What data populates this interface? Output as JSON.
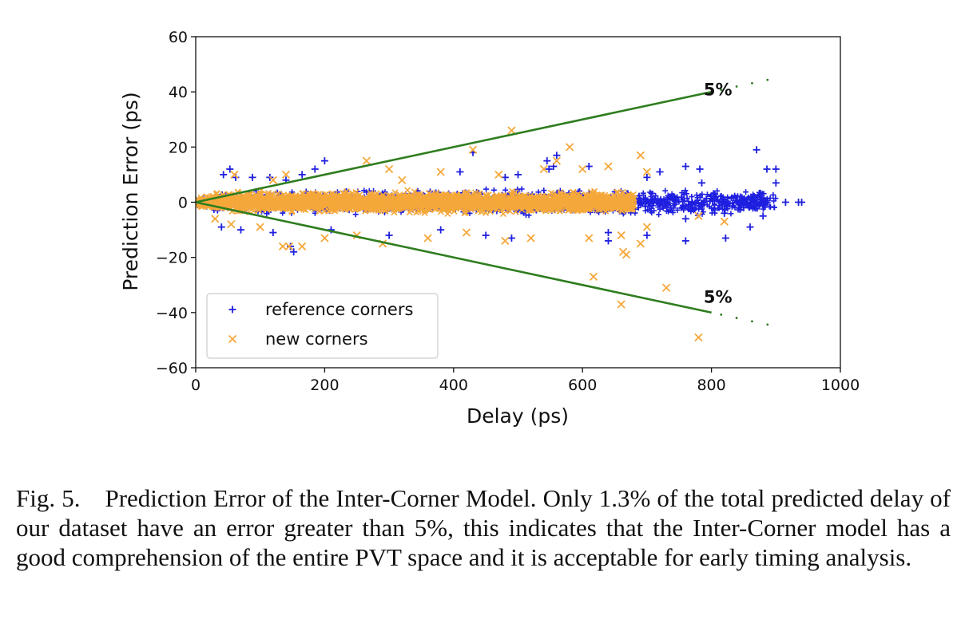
{
  "chart_data": {
    "type": "scatter",
    "xlabel": "Delay (ps)",
    "ylabel": "Prediction Error (ps)",
    "xlim": [
      0,
      1000
    ],
    "ylim": [
      -60,
      60
    ],
    "xticks": [
      0,
      200,
      400,
      600,
      800,
      1000
    ],
    "yticks": [
      60,
      40,
      20,
      0,
      -20,
      -40,
      -60
    ],
    "grid": false,
    "legend_position": "lower-left",
    "series": [
      {
        "name": "reference corners",
        "marker": "+",
        "color": "#1f1fe0",
        "points": [
          [
            870,
            19
          ],
          [
            900,
            12
          ],
          [
            886,
            12
          ],
          [
            900,
            7
          ],
          [
            760,
            13
          ],
          [
            782,
            12
          ],
          [
            720,
            11
          ],
          [
            700,
            9
          ],
          [
            560,
            17
          ],
          [
            548,
            12
          ],
          [
            545,
            15
          ],
          [
            430,
            18
          ],
          [
            555,
            13
          ],
          [
            500,
            10
          ],
          [
            480,
            9
          ],
          [
            200,
            15
          ],
          [
            185,
            12
          ],
          [
            53,
            12
          ],
          [
            43,
            10
          ],
          [
            62,
            9
          ],
          [
            88,
            9
          ],
          [
            115,
            9
          ],
          [
            140,
            8
          ],
          [
            165,
            10
          ],
          [
            640,
            -11
          ],
          [
            700,
            -12
          ],
          [
            760,
            -14
          ],
          [
            860,
            -9
          ],
          [
            822,
            -13
          ],
          [
            640,
            -14
          ],
          [
            490,
            -13
          ],
          [
            450,
            -12
          ],
          [
            147,
            -16
          ],
          [
            152,
            -18
          ],
          [
            120,
            -11
          ],
          [
            70,
            -10
          ],
          [
            40,
            -9
          ],
          [
            915,
            0
          ],
          [
            940,
            0
          ],
          [
            935,
            0
          ],
          [
            875,
            1
          ],
          [
            850,
            -2
          ],
          [
            820,
            -4
          ],
          [
            805,
            3
          ],
          [
            880,
            -5
          ],
          [
            760,
            -6
          ],
          [
            785,
            7
          ],
          [
            300,
            -12
          ],
          [
            380,
            -10
          ],
          [
            610,
            13
          ],
          [
            410,
            11
          ],
          [
            210,
            -10
          ]
        ]
      },
      {
        "name": "new corners",
        "marker": "x",
        "color": "#f5a83a",
        "points": [
          [
            490,
            26
          ],
          [
            580,
            20
          ],
          [
            690,
            17
          ],
          [
            430,
            19
          ],
          [
            265,
            15
          ],
          [
            300,
            12
          ],
          [
            135,
            -16
          ],
          [
            145,
            -16
          ],
          [
            165,
            -16
          ],
          [
            617,
            -27
          ],
          [
            663,
            -18
          ],
          [
            668,
            -19
          ],
          [
            690,
            -15
          ],
          [
            660,
            -37
          ],
          [
            730,
            -31
          ],
          [
            780,
            -49
          ],
          [
            700,
            -9
          ],
          [
            660,
            -12
          ],
          [
            610,
            -13
          ],
          [
            520,
            -13
          ],
          [
            480,
            -14
          ],
          [
            420,
            -11
          ],
          [
            360,
            -13
          ],
          [
            290,
            -15
          ],
          [
            250,
            -12
          ],
          [
            200,
            -13
          ],
          [
            100,
            -9
          ],
          [
            55,
            -8
          ],
          [
            30,
            -6
          ],
          [
            60,
            10
          ],
          [
            120,
            8
          ],
          [
            140,
            10
          ],
          [
            600,
            12
          ],
          [
            640,
            13
          ],
          [
            540,
            12
          ],
          [
            470,
            10
          ],
          [
            380,
            11
          ],
          [
            320,
            8
          ],
          [
            700,
            11
          ],
          [
            560,
            15
          ],
          [
            820,
            -7
          ],
          [
            780,
            -5
          ]
        ]
      }
    ],
    "dense_bands": [
      {
        "series": "reference corners",
        "x_range": [
          0,
          900
        ],
        "y_spread": 5.5
      },
      {
        "series": "new corners",
        "x_range": [
          0,
          680
        ],
        "y_spread": 4.5
      }
    ],
    "reference_lines": [
      {
        "label": "5%",
        "slope": 0.05,
        "x_range": [
          0,
          900
        ],
        "color": "#2e7d1e"
      },
      {
        "label": "5%",
        "slope": -0.05,
        "x_range": [
          0,
          900
        ],
        "color": "#2e7d1e"
      }
    ]
  },
  "caption": "Fig. 5. Prediction Error of the Inter-Corner Model. Only 1.3% of the total predicted delay of our dataset have an error greater than 5%, this indicates that the Inter-Corner model has a good comprehension of the entire PVT space and it is acceptable for early timing analysis."
}
